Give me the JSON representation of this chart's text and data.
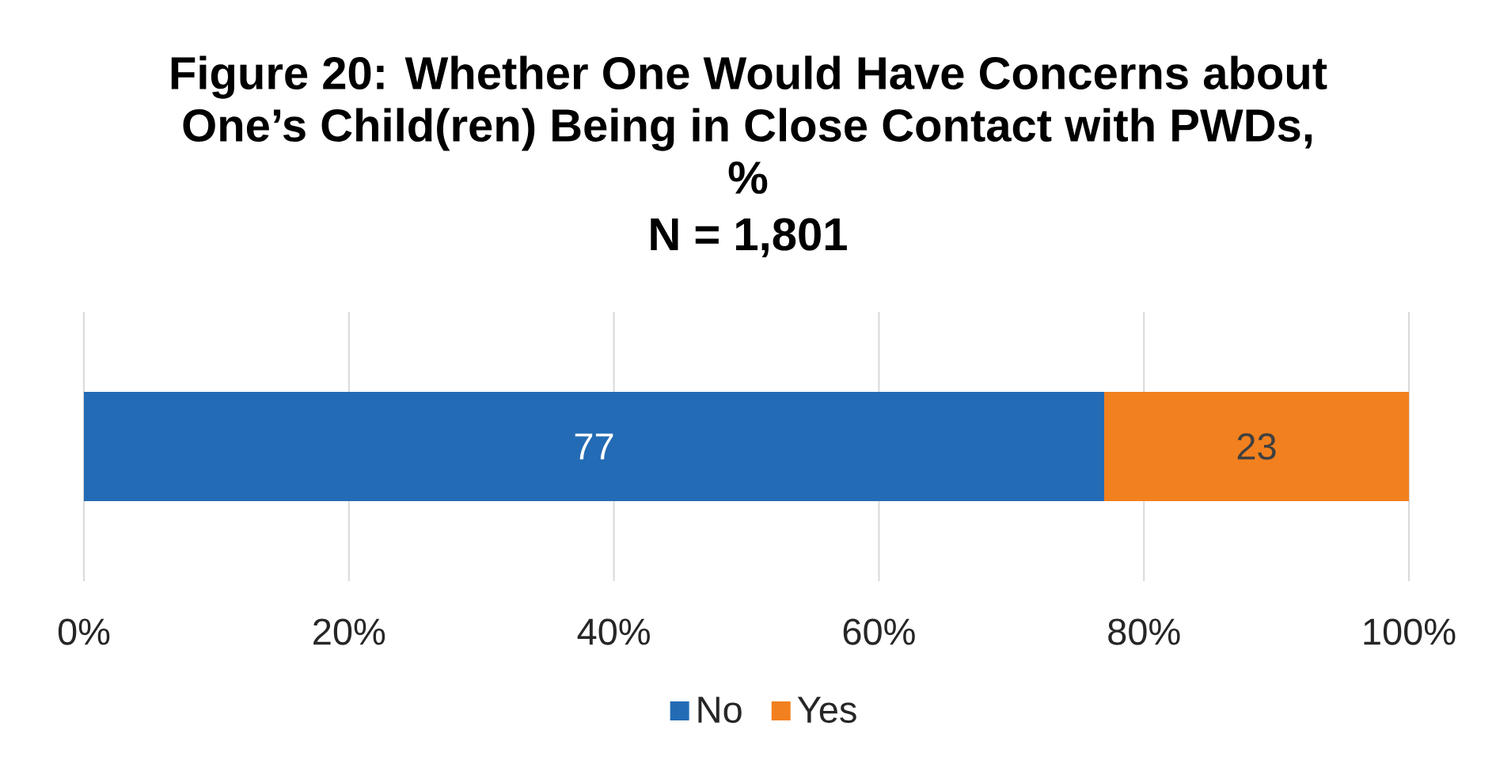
{
  "chart_data": {
    "type": "bar",
    "orientation": "horizontal",
    "stacked": true,
    "title": "Figure 20: Whether One Would Have Concerns about One’s Child(ren) Being in Close Contact with PWDs, %",
    "subtitle": "N = 1,801",
    "categories": [
      null
    ],
    "series": [
      {
        "name": "No",
        "color": "#236bb5",
        "values": [
          77
        ]
      },
      {
        "name": "Yes",
        "color": "#f2801f",
        "values": [
          23
        ]
      }
    ],
    "xlim": [
      0,
      100
    ],
    "xticks": [
      {
        "value": 0,
        "label": "0%"
      },
      {
        "value": 20,
        "label": "20%"
      },
      {
        "value": 40,
        "label": "40%"
      },
      {
        "value": 60,
        "label": "60%"
      },
      {
        "value": 80,
        "label": "80%"
      },
      {
        "value": 100,
        "label": "100%"
      }
    ],
    "grid": "x",
    "legend": "bottom",
    "data_labels": true
  }
}
